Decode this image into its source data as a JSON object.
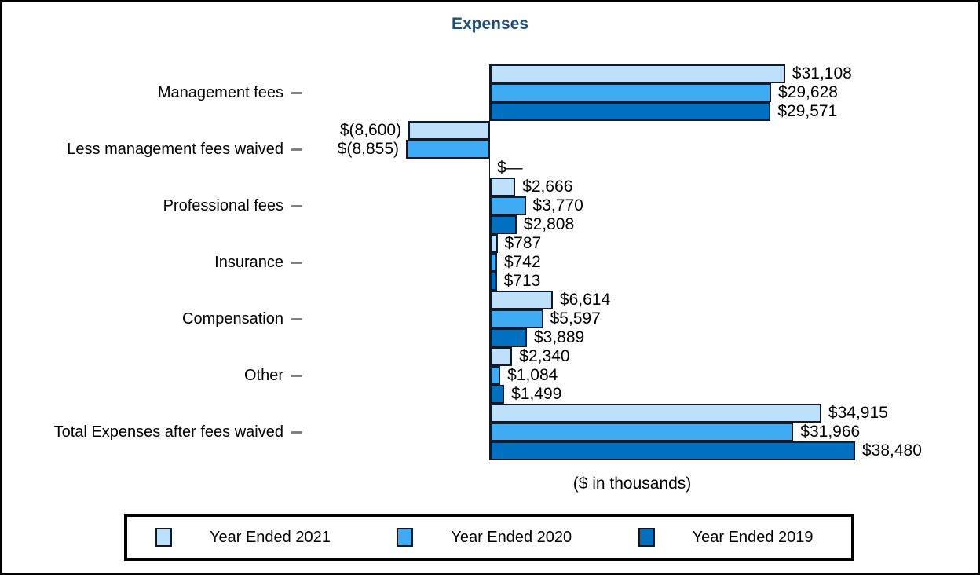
{
  "chart_data": {
    "type": "bar",
    "orientation": "horizontal",
    "title": "Expenses",
    "xlabel": "($ in thousands)",
    "value_units": "thousands of dollars",
    "gridlines": false,
    "legend_position": "bottom",
    "categories": [
      "Management fees",
      "Less management fees waived",
      "Professional fees",
      "Insurance",
      "Compensation",
      "Other",
      "Total Expenses after fees waived"
    ],
    "series": [
      {
        "name": "Year Ended 2021",
        "color": "#BFE0FA",
        "values": [
          31108,
          -8600,
          2666,
          787,
          6614,
          2340,
          34915
        ],
        "labels": [
          "$31,108",
          "$(8,600)",
          "$2,666",
          "$787",
          "$6,614",
          "$2,340",
          "$34,915"
        ]
      },
      {
        "name": "Year Ended 2020",
        "color": "#3FABF5",
        "values": [
          29628,
          -8855,
          3770,
          742,
          5597,
          1084,
          31966
        ],
        "labels": [
          "$29,628",
          "$(8,855)",
          "$3,770",
          "$742",
          "$5,597",
          "$1,084",
          "$31,966"
        ]
      },
      {
        "name": "Year Ended 2019",
        "color": "#0070C0",
        "values": [
          29571,
          0,
          2808,
          713,
          3889,
          1499,
          38480
        ],
        "labels": [
          "$29,571",
          "$—",
          "$2,808",
          "$713",
          "$3,889",
          "$1,499",
          "$38,480"
        ]
      }
    ],
    "x_axis_max": 38480
  },
  "colors": {
    "title_text": "#1F4E79",
    "bar_border": "#0E1A28",
    "tick_dash": "#808080",
    "frame_border": "#000000"
  }
}
